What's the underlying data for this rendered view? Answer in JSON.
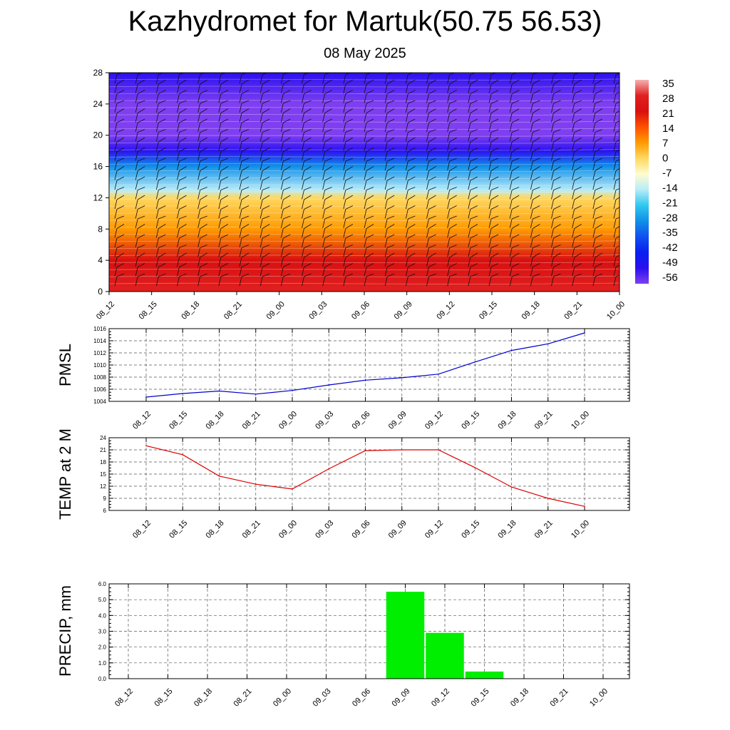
{
  "title": "Kazhydromet for Martuk(50.75 56.53)",
  "subtitle": "08 May 2025",
  "time_labels": [
    "08_12",
    "08_15",
    "08_18",
    "08_21",
    "09_00",
    "09_03",
    "09_06",
    "09_09",
    "09_12",
    "09_15",
    "09_18",
    "09_21",
    "10_00"
  ],
  "chart_data": [
    {
      "type": "heatmap",
      "name": "cross-section",
      "x": [
        "08_12",
        "08_15",
        "08_18",
        "08_21",
        "09_00",
        "09_03",
        "09_06",
        "09_09",
        "09_12",
        "09_15",
        "09_18",
        "09_21",
        "10_00"
      ],
      "ylim": [
        0,
        28
      ],
      "yticks": [
        0,
        4,
        8,
        12,
        16,
        20,
        24,
        28
      ],
      "colorbar_labels": [
        "35",
        "28",
        "21",
        "14",
        "7",
        "0",
        "-7",
        "-14",
        "-21",
        "-28",
        "-35",
        "-42",
        "-49",
        "-56"
      ],
      "colorbar_colors": [
        "#f7b0b0",
        "#e02020",
        "#d81010",
        "#ff5000",
        "#ff9a00",
        "#ffd860",
        "#fffcd0",
        "#b8ecf8",
        "#30c8f0",
        "#1090e8",
        "#1050f0",
        "#0820f0",
        "#2a10f0",
        "#7f3ff0"
      ],
      "colorbar_range": [
        -56,
        35
      ],
      "temp_profile": [
        {
          "level": 0,
          "value": 26
        },
        {
          "level": 4,
          "value": 18
        },
        {
          "level": 8,
          "value": 10
        },
        {
          "level": 12,
          "value": 1
        },
        {
          "level": 13,
          "value": -14
        },
        {
          "level": 16,
          "value": -28
        },
        {
          "level": 18,
          "value": -49
        },
        {
          "level": 20,
          "value": -56
        },
        {
          "level": 22,
          "value": -59
        },
        {
          "level": 24,
          "value": -56
        },
        {
          "level": 28,
          "value": -52
        }
      ]
    },
    {
      "type": "line",
      "name": "pmsl",
      "ylabel": "PMSL",
      "x": [
        "08_12",
        "08_15",
        "08_18",
        "08_21",
        "09_00",
        "09_03",
        "09_06",
        "09_09",
        "09_12",
        "09_15",
        "09_18",
        "09_21",
        "10_00"
      ],
      "values": [
        1004.7,
        1005.3,
        1005.7,
        1005.2,
        1005.8,
        1006.7,
        1007.5,
        1007.9,
        1008.5,
        1010.5,
        1012.4,
        1013.5,
        1015.3
      ],
      "ylim": [
        1004,
        1016
      ],
      "yticks": [
        1004,
        1006,
        1008,
        1010,
        1012,
        1014,
        1016
      ],
      "color": "#0000cc"
    },
    {
      "type": "line",
      "name": "temp2m",
      "ylabel": "TEMP at 2 M",
      "x": [
        "08_12",
        "08_15",
        "08_18",
        "08_21",
        "09_00",
        "09_03",
        "09_06",
        "09_09",
        "09_12",
        "09_15",
        "09_18",
        "09_21",
        "10_00"
      ],
      "values": [
        22.0,
        19.8,
        14.5,
        12.5,
        11.3,
        16.3,
        20.8,
        21.0,
        21.0,
        16.6,
        11.8,
        9.0,
        7.0
      ],
      "ylim": [
        6,
        24
      ],
      "yticks": [
        6,
        9,
        12,
        15,
        18,
        21,
        24
      ],
      "color": "#dd0000"
    },
    {
      "type": "bar",
      "name": "precip",
      "ylabel": "PRECIP, mm",
      "categories": [
        "08_12",
        "08_15",
        "08_18",
        "08_21",
        "09_00",
        "09_03",
        "09_06",
        "09_09",
        "09_12",
        "09_15",
        "09_18",
        "09_21",
        "10_00"
      ],
      "values": [
        0,
        0,
        0,
        0,
        0,
        0,
        0,
        5.5,
        2.9,
        0.45,
        0,
        0,
        0
      ],
      "ylim": [
        0,
        6.0
      ],
      "yticks": [
        "0.0",
        "1.0",
        "2.0",
        "3.0",
        "4.0",
        "5.0",
        "6.0"
      ],
      "color": "#00ee00"
    }
  ]
}
